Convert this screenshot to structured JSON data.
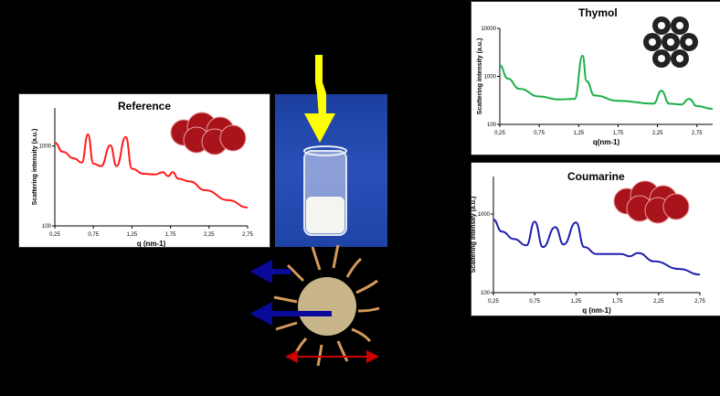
{
  "figure": {
    "photo_label": "vial with white suspension",
    "colors": {
      "reference_line": "#ff1a1a",
      "thymol_line": "#1db04a",
      "coumarine_line": "#1f1fb0",
      "yellow_arrow": "#ffff00",
      "blue_arrow": "#0a0a9a",
      "red_arrow": "#cc0000",
      "micelle_shell": "#d39a5a"
    }
  },
  "chart_data": [
    {
      "type": "line",
      "title": "Reference",
      "xlabel": "q (nm-1)",
      "ylabel": "Scattering intensity (a.u.)",
      "yscale": "log",
      "ylim": [
        100,
        3000
      ],
      "xlim": [
        0.25,
        2.75
      ],
      "xticks": [
        "0,25",
        "0,75",
        "1,25",
        "1,75",
        "2,25",
        "2,75"
      ],
      "yticks": [
        "100",
        "1000"
      ],
      "series": [
        {
          "name": "Reference",
          "color": "#ff1a1a",
          "x": [
            0.25,
            0.35,
            0.5,
            0.6,
            0.68,
            0.75,
            0.85,
            0.97,
            1.05,
            1.17,
            1.25,
            1.4,
            1.55,
            1.65,
            1.72,
            1.78,
            1.85,
            2.0,
            2.2,
            2.5,
            2.75
          ],
          "y": [
            1100,
            850,
            700,
            620,
            1400,
            600,
            560,
            1020,
            560,
            1300,
            520,
            450,
            440,
            470,
            420,
            470,
            390,
            360,
            280,
            210,
            170
          ]
        }
      ]
    },
    {
      "type": "line",
      "title": "Thymol",
      "xlabel": "q(nm-1)",
      "ylabel": "Scattering intensity (a.u.)",
      "yscale": "log",
      "ylim": [
        100,
        10000
      ],
      "xlim": [
        0.25,
        2.95
      ],
      "xticks": [
        "0,25",
        "0,75",
        "1,25",
        "1,75",
        "2,25",
        "2,75"
      ],
      "yticks": [
        "100",
        "1000",
        "10000"
      ],
      "series": [
        {
          "name": "Thymol",
          "color": "#1db04a",
          "x": [
            0.25,
            0.35,
            0.5,
            0.75,
            1.0,
            1.2,
            1.3,
            1.35,
            1.45,
            1.75,
            2.2,
            2.3,
            2.4,
            2.55,
            2.65,
            2.75,
            2.95
          ],
          "y": [
            1700,
            900,
            550,
            380,
            330,
            340,
            2700,
            800,
            400,
            310,
            270,
            500,
            270,
            260,
            340,
            240,
            210
          ]
        }
      ]
    },
    {
      "type": "line",
      "title": "Coumarine",
      "xlabel": "q (nm-1)",
      "ylabel": "Scattering intensity (a.u.)",
      "yscale": "log",
      "ylim": [
        100,
        3000
      ],
      "xlim": [
        0.25,
        2.75
      ],
      "xticks": [
        "0,25",
        "0,75",
        "1,25",
        "1,75",
        "2,25",
        "2,75"
      ],
      "yticks": [
        "100",
        "1000"
      ],
      "series": [
        {
          "name": "Coumarine",
          "color": "#1f1fb0",
          "x": [
            0.25,
            0.35,
            0.5,
            0.65,
            0.75,
            0.85,
            1.0,
            1.1,
            1.25,
            1.35,
            1.5,
            1.7,
            1.8,
            1.9,
            2.0,
            2.2,
            2.5,
            2.75
          ],
          "y": [
            850,
            600,
            480,
            400,
            800,
            380,
            680,
            410,
            780,
            380,
            310,
            310,
            310,
            290,
            320,
            250,
            200,
            170
          ]
        }
      ]
    }
  ]
}
